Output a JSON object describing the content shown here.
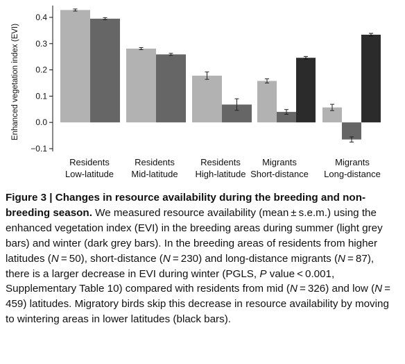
{
  "chart_data": {
    "type": "bar",
    "ylabel": "Enhanced vegetation index (EVI)",
    "ylim": [
      -0.1,
      0.45
    ],
    "yticks": [
      -0.1,
      0.0,
      0.1,
      0.2,
      0.3,
      0.4
    ],
    "ytick_labels": [
      "−0.1",
      "0.0",
      "0.1",
      "0.2",
      "0.3",
      "0.4"
    ],
    "categories": [
      [
        "Residents",
        "Low-latitude"
      ],
      [
        "Residents",
        "Mid-latitude"
      ],
      [
        "Residents",
        "High-latitude"
      ],
      [
        "Migrants",
        "Short-distance"
      ],
      [
        "Migrants",
        "Long-distance"
      ]
    ],
    "series": [
      {
        "key": "breeding_summer",
        "color": "#b2b2b2",
        "values": [
          0.428,
          0.281,
          0.178,
          0.158,
          0.057
        ],
        "errors": [
          0.004,
          0.004,
          0.014,
          0.008,
          0.012
        ]
      },
      {
        "key": "breeding_winter",
        "color": "#666666",
        "values": [
          0.395,
          0.259,
          0.068,
          0.04,
          -0.065
        ],
        "errors": [
          0.004,
          0.004,
          0.022,
          0.009,
          0.01
        ]
      },
      {
        "key": "wintering_area",
        "color": "#2b2b2b",
        "values": [
          null,
          null,
          null,
          0.246,
          0.334
        ],
        "errors": [
          null,
          null,
          null,
          0.005,
          0.005
        ]
      }
    ]
  },
  "caption": {
    "title": "Figure 3 | Changes in resource availability during the breeding and non-breeding season.",
    "p1": " We measured resource availability (mean ± s.e.m.) using the enhanced vegetation index (EVI) in the breeding areas during summer (light grey bars) and winter (dark grey bars). In the breeding areas of residents from higher latitudes (",
    "n_high": "N",
    "p2": " = 50), short-distance (",
    "n_short": "N",
    "p3": " = 230) and long-distance migrants (",
    "n_long": "N",
    "p4": " = 87), there is a larger decrease in EVI during winter (PGLS, ",
    "p_var": "P",
    "p5": " value < 0.001, Supplementary Table 10) compared with residents from mid (",
    "n_mid": "N",
    "p6": " = 326) and low (",
    "n_low": "N",
    "p7": " = 459) latitudes. Migratory birds skip this decrease in resource availability by moving to wintering areas in lower latitudes (black bars)."
  }
}
